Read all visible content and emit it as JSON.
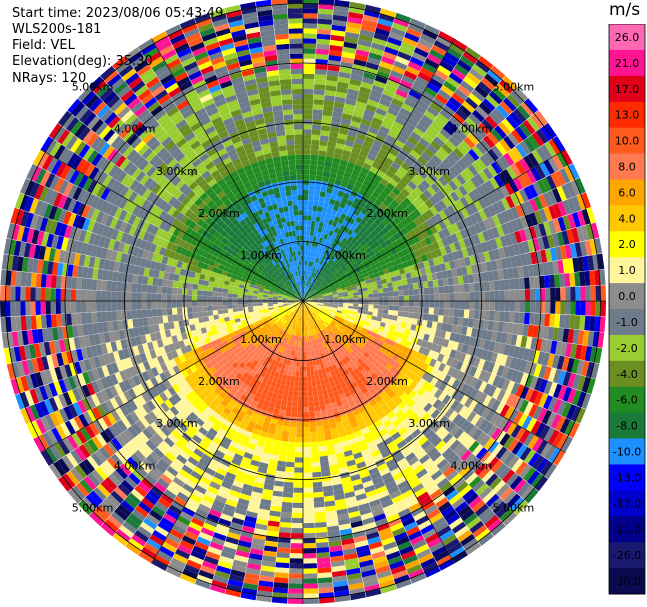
{
  "info": {
    "start_time": "Start time: 2023/08/06 05:43:49",
    "instrument": "WLS200s-181",
    "field": "Field: VEL",
    "elevation": "Elevation(deg): 35.30",
    "nrays": "NRays: 120"
  },
  "colorbar": {
    "unit": "m/s",
    "ticks": [
      "26.0",
      "21.0",
      "17.0",
      "13.0",
      "10.0",
      "8.0",
      "6.0",
      "4.0",
      "2.0",
      "1.0",
      "0.0",
      "-1.0",
      "-2.0",
      "-4.0",
      "-6.0",
      "-8.0",
      "-10.0",
      "-13.0",
      "-17.0",
      "-21.0",
      "-26.0",
      "-30.0"
    ],
    "colors": [
      "#ff69b4",
      "#ff1493",
      "#e0001a",
      "#ff2a00",
      "#ff5a1e",
      "#ff7a50",
      "#ffa500",
      "#ffc800",
      "#ffff00",
      "#fff59a",
      "#8c8c8c",
      "#6e7b8b",
      "#9acd32",
      "#6b8e23",
      "#228b22",
      "#1a7a3a",
      "#1e90ff",
      "#0000ff",
      "#0000cd",
      "#00008b",
      "#191970",
      "#0a0a50"
    ]
  },
  "chart_data": {
    "type": "heatmap",
    "projection": "polar-ppi",
    "field": "VEL",
    "units": "m/s",
    "n_rays": 120,
    "range_rings_km": [
      1.0,
      2.0,
      3.0,
      4.0,
      5.0
    ],
    "range_ring_labels": [
      "1.00km",
      "2.00km",
      "3.00km",
      "4.00km",
      "5.00km"
    ],
    "max_range_km": 5.0,
    "velocity_levels": [
      -30.0,
      -26.0,
      -21.0,
      -17.0,
      -13.0,
      -10.0,
      -8.0,
      -6.0,
      -4.0,
      -2.0,
      -1.0,
      0.0,
      1.0,
      2.0,
      4.0,
      6.0,
      8.0,
      10.0,
      13.0,
      17.0,
      21.0,
      26.0
    ],
    "vlim": [
      -30.0,
      26.0
    ],
    "spoke_angles_deg": [
      0,
      30,
      60,
      90,
      120,
      150,
      180,
      210,
      240,
      270,
      300,
      330
    ]
  }
}
